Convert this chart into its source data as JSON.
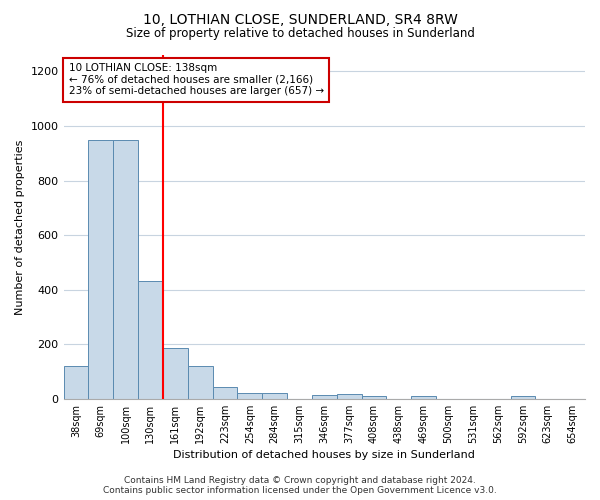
{
  "title": "10, LOTHIAN CLOSE, SUNDERLAND, SR4 8RW",
  "subtitle": "Size of property relative to detached houses in Sunderland",
  "xlabel": "Distribution of detached houses by size in Sunderland",
  "ylabel": "Number of detached properties",
  "categories": [
    "38sqm",
    "69sqm",
    "100sqm",
    "130sqm",
    "161sqm",
    "192sqm",
    "223sqm",
    "254sqm",
    "284sqm",
    "315sqm",
    "346sqm",
    "377sqm",
    "408sqm",
    "438sqm",
    "469sqm",
    "500sqm",
    "531sqm",
    "562sqm",
    "592sqm",
    "623sqm",
    "654sqm"
  ],
  "values": [
    120,
    950,
    950,
    430,
    185,
    120,
    43,
    20,
    20,
    0,
    15,
    17,
    10,
    0,
    10,
    0,
    0,
    0,
    10,
    0,
    0
  ],
  "bar_color": "#c8d9e8",
  "bar_edge_color": "#5a8ab0",
  "red_line_x": 3.5,
  "annotation_line1": "10 LOTHIAN CLOSE: 138sqm",
  "annotation_line2": "← 76% of detached houses are smaller (2,166)",
  "annotation_line3": "23% of semi-detached houses are larger (657) →",
  "annotation_box_color": "#ffffff",
  "annotation_box_edge_color": "#cc0000",
  "ylim": [
    0,
    1260
  ],
  "yticks": [
    0,
    200,
    400,
    600,
    800,
    1000,
    1200
  ],
  "footer_line1": "Contains HM Land Registry data © Crown copyright and database right 2024.",
  "footer_line2": "Contains public sector information licensed under the Open Government Licence v3.0.",
  "bg_color": "#ffffff",
  "grid_color": "#c8d4e0"
}
